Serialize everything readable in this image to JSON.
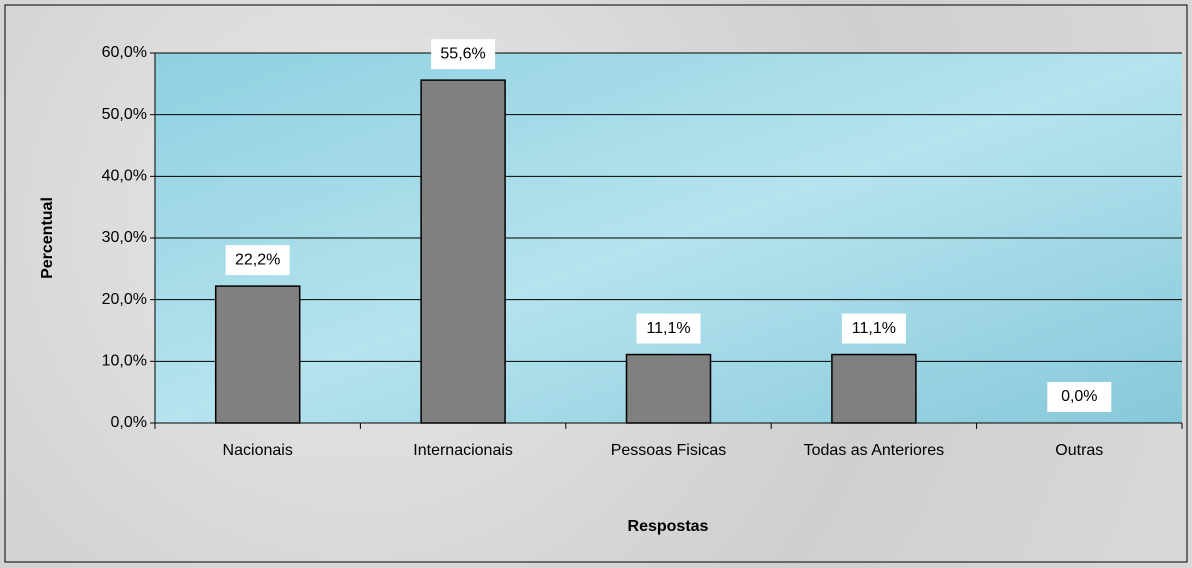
{
  "chart_data": {
    "type": "bar",
    "x_label": "Respostas",
    "y_label": "Percentual",
    "categories": [
      "Nacionais",
      "Internacionais",
      "Pessoas Fisicas",
      "Todas as Anteriores",
      "Outras"
    ],
    "values": [
      22.2,
      55.6,
      11.1,
      11.1,
      0
    ],
    "value_labels": [
      "22,2%",
      "55,6%",
      "11,1%",
      "11,1%",
      "0,0%"
    ],
    "color": "#808080",
    "ylim": [
      0,
      60
    ],
    "yticks": [
      {
        "value": 0,
        "label": "0,0%"
      },
      {
        "value": 10,
        "label": "10,0%"
      },
      {
        "value": 20,
        "label": "20,0%"
      },
      {
        "value": 30,
        "label": "30,0%"
      },
      {
        "value": 40,
        "label": "40,0%"
      },
      {
        "value": 50,
        "label": "50,0%"
      },
      {
        "value": 60,
        "label": "60,0%"
      }
    ],
    "grid": true
  }
}
